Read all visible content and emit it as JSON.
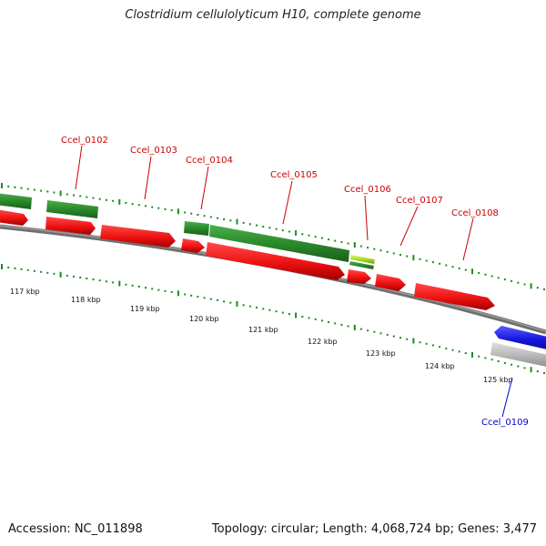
{
  "title": "Clostridium cellulolyticum H10, complete genome",
  "footer": {
    "accession": "Accession: NC_011898",
    "summary": "Topology: circular; Length: 4,068,724 bp; Genes: 3,477"
  },
  "colors": {
    "cds_forward": "#ee1111",
    "gene_forward": "#2a8a2a",
    "rrna": "#aadd22",
    "cds_reverse": "#1515dd",
    "gene_reverse": "#b8b8b8",
    "backbone": "#7a7a7a",
    "ticks": "#1f8a1f",
    "label_forward": "#cc0000",
    "label_reverse": "#0000cc"
  },
  "scale_labels": [
    "117 kbp",
    "118 kbp",
    "119 kbp",
    "120 kbp",
    "121 kbp",
    "122 kbp",
    "123 kbp",
    "124 kbp",
    "125 kbp"
  ],
  "gene_labels": [
    {
      "name": "Ccel_0102",
      "strand": "forward"
    },
    {
      "name": "Ccel_0103",
      "strand": "forward"
    },
    {
      "name": "Ccel_0104",
      "strand": "forward"
    },
    {
      "name": "Ccel_0105",
      "strand": "forward"
    },
    {
      "name": "Ccel_0106",
      "strand": "forward"
    },
    {
      "name": "Ccel_0107",
      "strand": "forward"
    },
    {
      "name": "Ccel_0108",
      "strand": "forward"
    },
    {
      "name": "Ccel_0109",
      "strand": "reverse"
    }
  ]
}
